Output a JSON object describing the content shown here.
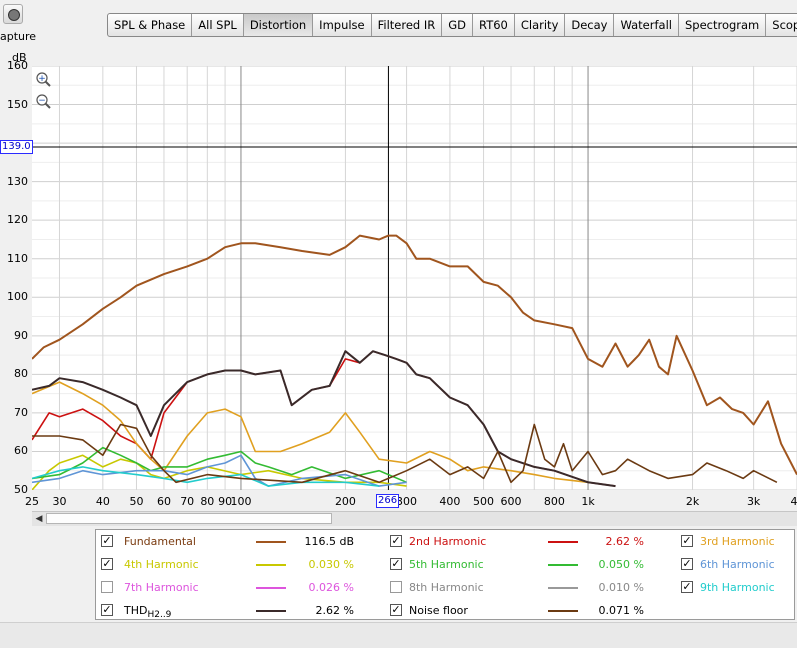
{
  "capture": {
    "label": "apture"
  },
  "tabs": [
    {
      "label": "SPL & Phase",
      "active": false
    },
    {
      "label": "All SPL",
      "active": false
    },
    {
      "label": "Distortion",
      "active": true
    },
    {
      "label": "Impulse",
      "active": false
    },
    {
      "label": "Filtered IR",
      "active": false
    },
    {
      "label": "GD",
      "active": false
    },
    {
      "label": "RT60",
      "active": false
    },
    {
      "label": "Clarity",
      "active": false
    },
    {
      "label": "Decay",
      "active": false
    },
    {
      "label": "Waterfall",
      "active": false
    },
    {
      "label": "Spectrogram",
      "active": false
    },
    {
      "label": "Scope",
      "active": false
    }
  ],
  "y_unit": "dB",
  "cursor": {
    "y_value": "139.0",
    "x_value": "266"
  },
  "chart_data": {
    "type": "line",
    "xscale": "log",
    "xlim": [
      25,
      4000
    ],
    "ylim": [
      50,
      160
    ],
    "ylabel": "dB",
    "y_ticks": [
      "160",
      "150",
      "140",
      "130",
      "120",
      "110",
      "100",
      "90",
      "80",
      "70",
      "60",
      "50"
    ],
    "x_ticks": [
      "25",
      "30",
      "40",
      "50",
      "60",
      "70",
      "80",
      "90",
      "100",
      "200",
      "300",
      "400",
      "500",
      "600",
      "800",
      "1k",
      "2k",
      "3k",
      "4"
    ],
    "series": [
      {
        "name": "Fundamental",
        "color": "#a0551e",
        "points": [
          [
            25,
            84
          ],
          [
            27,
            87
          ],
          [
            30,
            89
          ],
          [
            35,
            93
          ],
          [
            40,
            97
          ],
          [
            45,
            100
          ],
          [
            50,
            103
          ],
          [
            60,
            106
          ],
          [
            70,
            108
          ],
          [
            80,
            110
          ],
          [
            90,
            113
          ],
          [
            100,
            114
          ],
          [
            110,
            114
          ],
          [
            130,
            113
          ],
          [
            150,
            112
          ],
          [
            180,
            111
          ],
          [
            200,
            113
          ],
          [
            220,
            116
          ],
          [
            250,
            115
          ],
          [
            266,
            116
          ],
          [
            280,
            116
          ],
          [
            300,
            114
          ],
          [
            320,
            110
          ],
          [
            350,
            110
          ],
          [
            400,
            108
          ],
          [
            450,
            108
          ],
          [
            500,
            104
          ],
          [
            550,
            103
          ],
          [
            600,
            100
          ],
          [
            650,
            96
          ],
          [
            700,
            94
          ],
          [
            800,
            93
          ],
          [
            900,
            92
          ],
          [
            1000,
            84
          ],
          [
            1100,
            82
          ],
          [
            1200,
            88
          ],
          [
            1300,
            82
          ],
          [
            1400,
            85
          ],
          [
            1500,
            89
          ],
          [
            1600,
            82
          ],
          [
            1700,
            80
          ],
          [
            1800,
            90
          ],
          [
            2000,
            81
          ],
          [
            2200,
            72
          ],
          [
            2400,
            74
          ],
          [
            2600,
            71
          ],
          [
            2800,
            70
          ],
          [
            3000,
            67
          ],
          [
            3300,
            73
          ],
          [
            3600,
            62
          ],
          [
            4000,
            54
          ]
        ]
      },
      {
        "name": "2nd Harmonic",
        "color": "#cc1111",
        "points": [
          [
            25,
            63
          ],
          [
            28,
            70
          ],
          [
            30,
            69
          ],
          [
            35,
            71
          ],
          [
            40,
            68
          ],
          [
            45,
            64
          ],
          [
            50,
            62
          ],
          [
            55,
            58
          ],
          [
            60,
            70
          ],
          [
            70,
            78
          ],
          [
            80,
            80
          ],
          [
            90,
            81
          ],
          [
            100,
            81
          ],
          [
            110,
            80
          ],
          [
            130,
            81
          ],
          [
            140,
            72
          ],
          [
            160,
            76
          ],
          [
            180,
            77
          ],
          [
            200,
            84
          ],
          [
            220,
            83
          ],
          [
            240,
            86
          ],
          [
            260,
            85
          ],
          [
            280,
            84
          ],
          [
            300,
            83
          ],
          [
            320,
            80
          ],
          [
            350,
            79
          ],
          [
            400,
            74
          ],
          [
            450,
            72
          ],
          [
            500,
            67
          ],
          [
            550,
            60
          ],
          [
            600,
            58
          ],
          [
            700,
            56
          ],
          [
            800,
            55
          ],
          [
            1000,
            52
          ],
          [
            1200,
            51
          ]
        ]
      },
      {
        "name": "3rd Harmonic",
        "color": "#e0a020",
        "points": [
          [
            25,
            75
          ],
          [
            30,
            78
          ],
          [
            35,
            75
          ],
          [
            40,
            72
          ],
          [
            45,
            68
          ],
          [
            50,
            62
          ],
          [
            55,
            58
          ],
          [
            60,
            55
          ],
          [
            70,
            64
          ],
          [
            80,
            70
          ],
          [
            90,
            71
          ],
          [
            100,
            69
          ],
          [
            110,
            60
          ],
          [
            130,
            60
          ],
          [
            150,
            62
          ],
          [
            180,
            65
          ],
          [
            200,
            70
          ],
          [
            220,
            65
          ],
          [
            250,
            58
          ],
          [
            300,
            57
          ],
          [
            350,
            60
          ],
          [
            400,
            58
          ],
          [
            450,
            55
          ],
          [
            500,
            56
          ],
          [
            600,
            55
          ],
          [
            700,
            54
          ],
          [
            800,
            53
          ],
          [
            1000,
            52
          ]
        ]
      },
      {
        "name": "4th Harmonic",
        "color": "#c8c800",
        "points": [
          [
            25,
            50
          ],
          [
            28,
            55
          ],
          [
            30,
            57
          ],
          [
            35,
            59
          ],
          [
            40,
            56
          ],
          [
            45,
            58
          ],
          [
            50,
            57
          ],
          [
            55,
            54
          ],
          [
            60,
            53
          ],
          [
            70,
            55
          ],
          [
            80,
            56
          ],
          [
            100,
            54
          ],
          [
            120,
            55
          ],
          [
            150,
            53
          ],
          [
            200,
            52
          ],
          [
            250,
            52
          ],
          [
            300,
            51
          ]
        ]
      },
      {
        "name": "5th Harmonic",
        "color": "#33bb33",
        "points": [
          [
            25,
            53
          ],
          [
            30,
            54
          ],
          [
            35,
            57
          ],
          [
            40,
            61
          ],
          [
            45,
            59
          ],
          [
            50,
            57
          ],
          [
            55,
            55
          ],
          [
            60,
            56
          ],
          [
            70,
            56
          ],
          [
            80,
            58
          ],
          [
            90,
            59
          ],
          [
            100,
            60
          ],
          [
            110,
            57
          ],
          [
            120,
            56
          ],
          [
            140,
            54
          ],
          [
            160,
            56
          ],
          [
            200,
            53
          ],
          [
            250,
            55
          ],
          [
            300,
            52
          ]
        ]
      },
      {
        "name": "6th Harmonic",
        "color": "#5f95d6",
        "points": [
          [
            25,
            52
          ],
          [
            30,
            53
          ],
          [
            35,
            55
          ],
          [
            40,
            54
          ],
          [
            50,
            55
          ],
          [
            60,
            55
          ],
          [
            70,
            54
          ],
          [
            80,
            56
          ],
          [
            90,
            57
          ],
          [
            100,
            59
          ],
          [
            110,
            53
          ],
          [
            120,
            51
          ],
          [
            150,
            53
          ],
          [
            200,
            54
          ],
          [
            250,
            51
          ],
          [
            300,
            52
          ]
        ]
      },
      {
        "name": "7th Harmonic",
        "color": "#dd55dd",
        "points": []
      },
      {
        "name": "8th Harmonic",
        "color": "#999999",
        "points": []
      },
      {
        "name": "9th Harmonic",
        "color": "#22cccc",
        "points": [
          [
            25,
            53
          ],
          [
            30,
            55
          ],
          [
            35,
            56
          ],
          [
            40,
            55
          ],
          [
            50,
            54
          ],
          [
            60,
            53
          ],
          [
            70,
            52
          ],
          [
            80,
            53
          ],
          [
            100,
            54
          ],
          [
            120,
            51
          ],
          [
            150,
            52
          ],
          [
            200,
            52
          ],
          [
            250,
            51
          ]
        ]
      },
      {
        "name": "THD",
        "color": "#3a2a2a",
        "points": [
          [
            25,
            76
          ],
          [
            28,
            77
          ],
          [
            30,
            79
          ],
          [
            35,
            78
          ],
          [
            40,
            76
          ],
          [
            45,
            74
          ],
          [
            50,
            72
          ],
          [
            55,
            64
          ],
          [
            60,
            72
          ],
          [
            70,
            78
          ],
          [
            80,
            80
          ],
          [
            90,
            81
          ],
          [
            100,
            81
          ],
          [
            110,
            80
          ],
          [
            130,
            81
          ],
          [
            140,
            72
          ],
          [
            160,
            76
          ],
          [
            180,
            77
          ],
          [
            200,
            86
          ],
          [
            220,
            83
          ],
          [
            240,
            86
          ],
          [
            260,
            85
          ],
          [
            280,
            84
          ],
          [
            300,
            83
          ],
          [
            320,
            80
          ],
          [
            350,
            79
          ],
          [
            400,
            74
          ],
          [
            450,
            72
          ],
          [
            500,
            67
          ],
          [
            550,
            60
          ],
          [
            600,
            58
          ],
          [
            700,
            56
          ],
          [
            800,
            55
          ],
          [
            1000,
            52
          ],
          [
            1200,
            51
          ]
        ]
      },
      {
        "name": "Noise floor",
        "color": "#6b3a12",
        "points": [
          [
            25,
            64
          ],
          [
            30,
            64
          ],
          [
            35,
            63
          ],
          [
            40,
            59
          ],
          [
            45,
            67
          ],
          [
            50,
            66
          ],
          [
            55,
            59
          ],
          [
            60,
            55
          ],
          [
            65,
            52
          ],
          [
            80,
            54
          ],
          [
            100,
            53
          ],
          [
            150,
            52
          ],
          [
            200,
            55
          ],
          [
            250,
            52
          ],
          [
            300,
            55
          ],
          [
            350,
            58
          ],
          [
            400,
            54
          ],
          [
            450,
            56
          ],
          [
            500,
            53
          ],
          [
            550,
            60
          ],
          [
            600,
            52
          ],
          [
            650,
            55
          ],
          [
            700,
            67
          ],
          [
            750,
            58
          ],
          [
            800,
            56
          ],
          [
            850,
            62
          ],
          [
            900,
            55
          ],
          [
            1000,
            60
          ],
          [
            1100,
            54
          ],
          [
            1200,
            55
          ],
          [
            1300,
            58
          ],
          [
            1500,
            55
          ],
          [
            1700,
            53
          ],
          [
            2000,
            54
          ],
          [
            2200,
            57
          ],
          [
            2500,
            55
          ],
          [
            2800,
            53
          ],
          [
            3000,
            55
          ],
          [
            3500,
            52
          ]
        ]
      }
    ]
  },
  "legend": [
    [
      {
        "checked": true,
        "name": "Fundamental",
        "value": "116.5 dB",
        "color": "#a0551e"
      },
      {
        "checked": true,
        "name": "2nd Harmonic",
        "value": "2.62 %",
        "color": "#cc1111"
      },
      {
        "checked": true,
        "name": "3rd Harmonic",
        "value": "",
        "color": "#e0a020"
      }
    ],
    [
      {
        "checked": true,
        "name": "4th Harmonic",
        "value": "0.030 %",
        "color": "#c8c800"
      },
      {
        "checked": true,
        "name": "5th Harmonic",
        "value": "0.050 %",
        "color": "#33bb33"
      },
      {
        "checked": true,
        "name": "6th Harmonic",
        "value": "",
        "color": "#5f95d6"
      }
    ],
    [
      {
        "checked": false,
        "name": "7th Harmonic",
        "value": "0.026 %",
        "color": "#dd55dd"
      },
      {
        "checked": false,
        "name": "8th Harmonic",
        "value": "0.010 %",
        "color": "#999999"
      },
      {
        "checked": true,
        "name": "9th Harmonic",
        "value": "",
        "color": "#22cccc"
      }
    ],
    [
      {
        "checked": true,
        "name": "THD",
        "sub": "H2..9",
        "value": "2.62 %",
        "color": "#3a2a2a"
      },
      {
        "checked": true,
        "name": "Noise floor",
        "value": "0.071 %",
        "color": "#6b3a12"
      }
    ]
  ]
}
